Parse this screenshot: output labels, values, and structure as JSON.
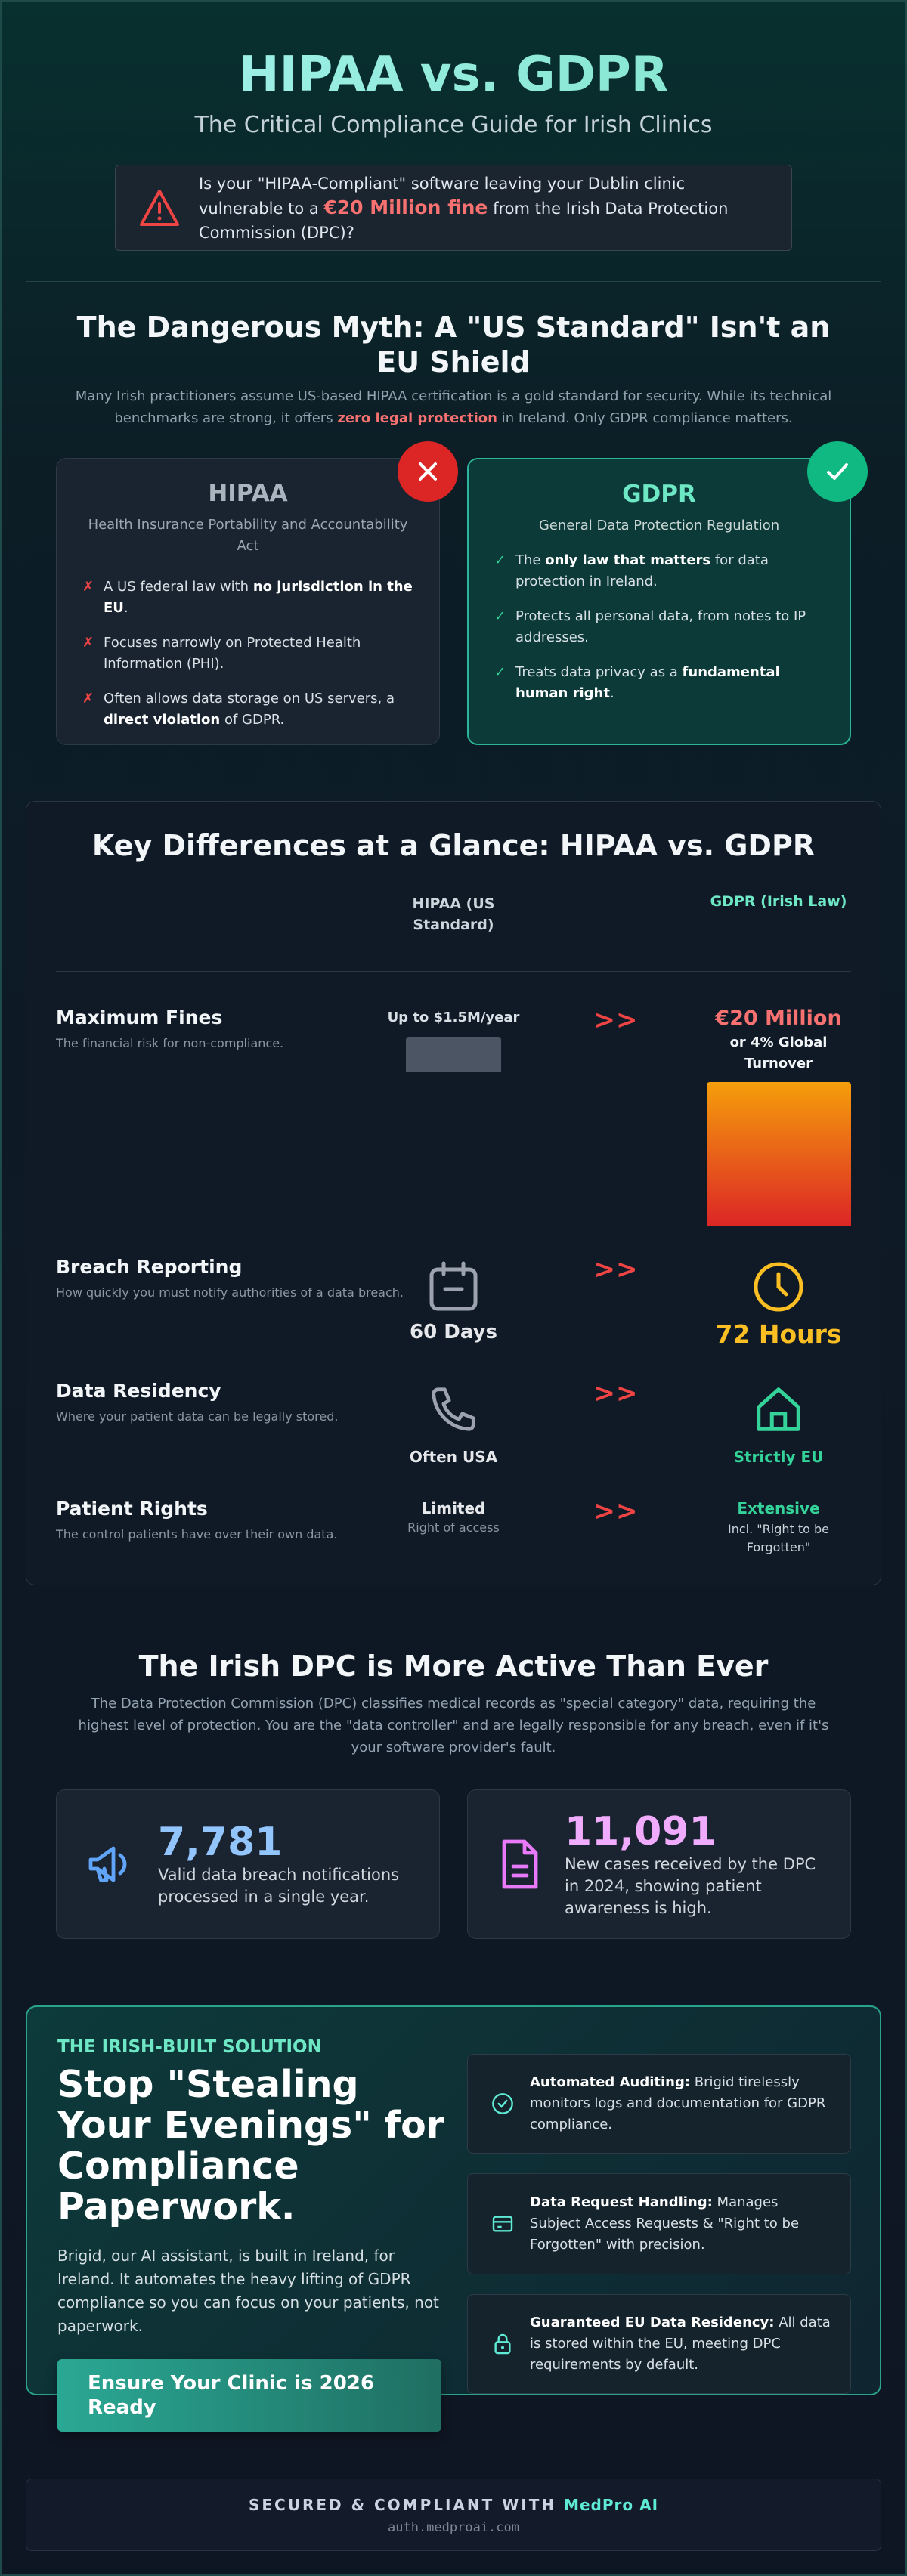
{
  "header": {
    "title": "HIPAA vs. GDPR",
    "subtitle": "The Critical Compliance Guide for Irish Clinics",
    "alert": [
      "Is your \"HIPAA-Compliant\" software leaving your Dublin clinic vulnerable to a ",
      "€20 Million fine",
      " from the Irish Data Protection Commission (DPC)?"
    ]
  },
  "myth": {
    "title": "The Dangerous Myth: A \"US Standard\" Isn't an EU Shield",
    "intro": [
      "Many Irish practitioners assume US-based HIPAA certification is a gold standard for security. While its technical benchmarks are strong, it offers ",
      "zero legal protection",
      " in Ireland. Only GDPR compliance matters."
    ],
    "cards": [
      {
        "title": "HIPAA",
        "subtitle": "Health Insurance Portability and Accountability Act",
        "marker": "✗",
        "items": [
          [
            "A US federal law with ",
            "no jurisdiction in the EU",
            "."
          ],
          [
            "Focuses narrowly on Protected Health Information (PHI)."
          ],
          [
            "Often allows data storage on US servers, a ",
            "direct violation",
            " of GDPR."
          ]
        ]
      },
      {
        "title": "GDPR",
        "subtitle": "General Data Protection Regulation",
        "marker": "✓",
        "items": [
          [
            "The ",
            "only law that matters",
            " for data protection in Ireland."
          ],
          [
            "Protects all personal data, from notes to IP addresses."
          ],
          [
            "Treats data privacy as a ",
            "fundamental human right",
            "."
          ]
        ]
      }
    ]
  },
  "comparison": {
    "title": "Key Differences at a Glance: HIPAA vs. GDPR",
    "columns": [
      "HIPAA (US Standard)",
      "GDPR (Irish Law)"
    ],
    "arrow": ">>",
    "rows": [
      {
        "label": "Maximum Fines",
        "description": "The financial risk for non-compliance.",
        "hipaa": [
          "Up to $1.5M/year"
        ],
        "gdpr": [
          "€20 Million",
          "or 4% Global Turnover"
        ]
      },
      {
        "label": "Breach Reporting",
        "description": "How quickly you must notify authorities of a data breach.",
        "hipaa": [
          "60 Days"
        ],
        "gdpr": [
          "72 Hours"
        ]
      },
      {
        "label": "Data Residency",
        "description": "Where your patient data can be legally stored.",
        "hipaa": [
          "Often USA"
        ],
        "gdpr": [
          "Strictly EU"
        ]
      },
      {
        "label": "Patient Rights",
        "description": "The control patients have over their own data.",
        "hipaa": [
          "Limited",
          "Right of access"
        ],
        "gdpr": [
          "Extensive",
          "Incl. \"Right to be Forgotten\""
        ]
      }
    ]
  },
  "dpc": {
    "title": "The Irish DPC is More Active Than Ever",
    "intro": "The Data Protection Commission (DPC) classifies medical records as \"special category\" data, requiring the highest level of protection. You are the \"data controller\" and are legally responsible for any breach, even if it's your software provider's fault.",
    "stats": [
      {
        "value": "7,781",
        "text": "Valid data breach notifications processed in a single year."
      },
      {
        "value": "11,091",
        "text": "New cases received by the DPC in 2024, showing patient awareness is high."
      }
    ]
  },
  "solution": {
    "eyebrow": "THE IRISH-BUILT SOLUTION",
    "title": "Stop \"Stealing Your Evenings\" for Compliance Paperwork.",
    "text": "Brigid, our AI assistant, is built in Ireland, for Ireland. It automates the heavy lifting of GDPR compliance so you can focus on your patients, not paperwork.",
    "button": "Ensure Your Clinic is 2026 Ready",
    "features": [
      [
        "Automated Auditing:",
        " Brigid tirelessly monitors logs and documentation for GDPR compliance."
      ],
      [
        "Data Request Handling:",
        " Manages Subject Access Requests & \"Right to be Forgotten\" with precision."
      ],
      [
        "Guaranteed EU Data Residency:",
        " All data is stored within the EU, meeting DPC requirements by default."
      ]
    ]
  },
  "footer": {
    "text": [
      "SECURED & COMPLIANT WITH ",
      "MedPro AI"
    ],
    "url": "auth.medproai.com"
  }
}
